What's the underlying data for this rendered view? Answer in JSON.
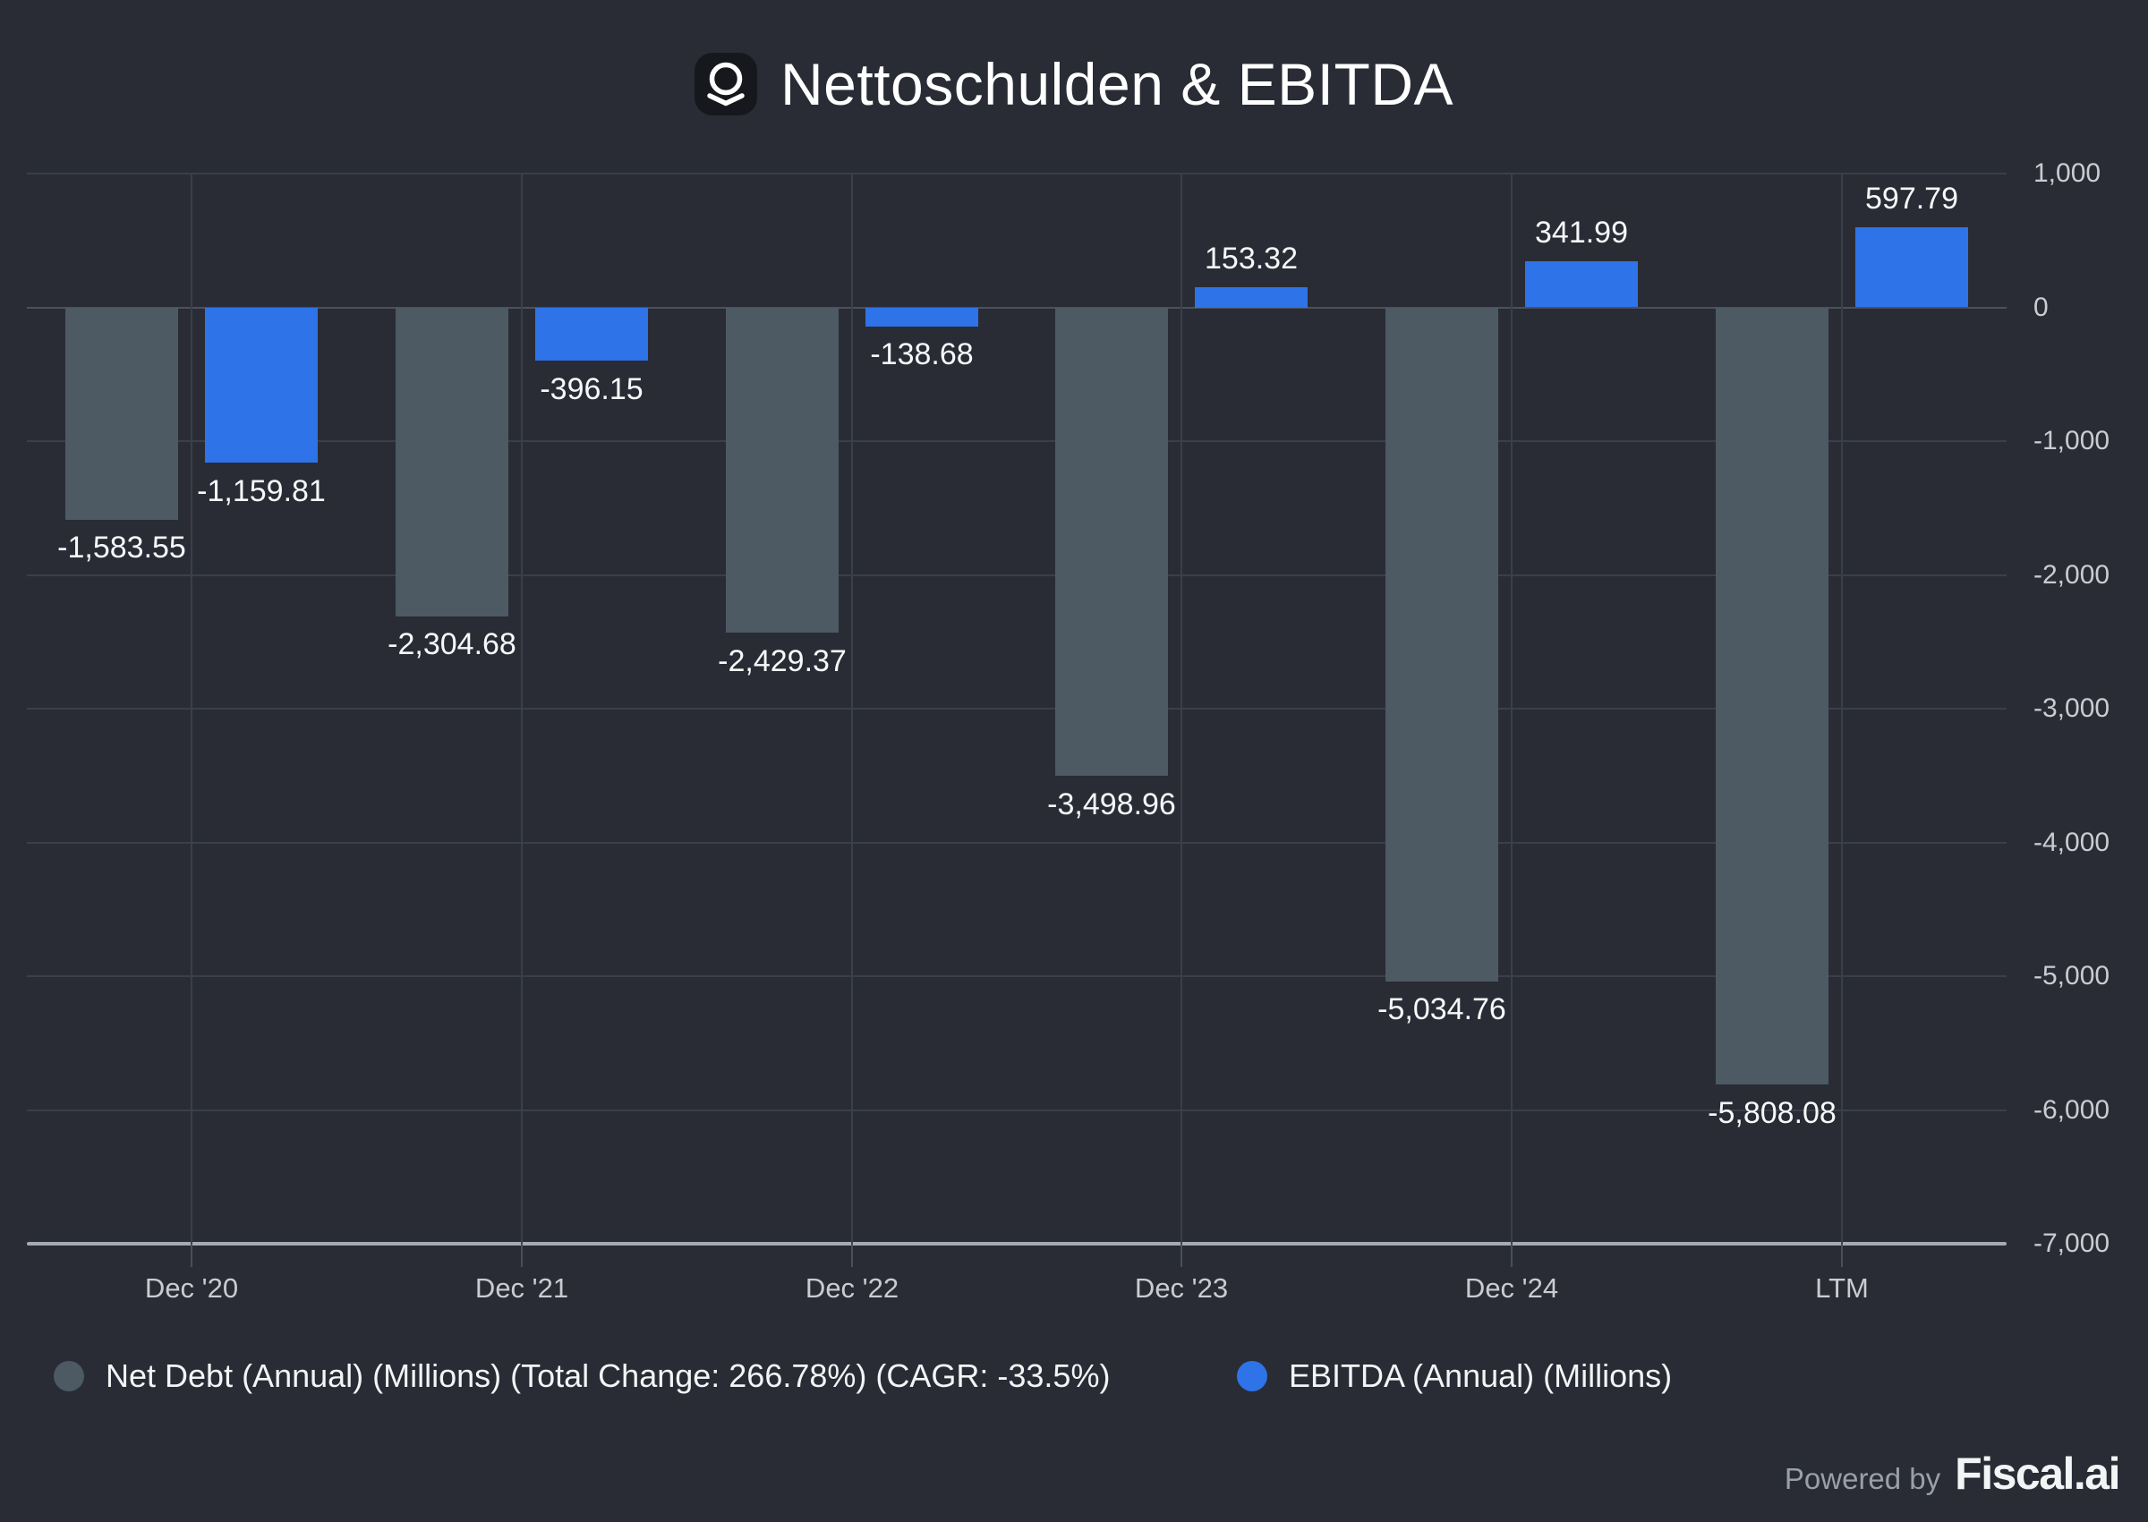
{
  "title": "Nettoschulden & EBITDA",
  "chart_data": {
    "type": "bar",
    "categories": [
      "Dec '20",
      "Dec '21",
      "Dec '22",
      "Dec '23",
      "Dec '24",
      "LTM"
    ],
    "series": [
      {
        "name": "Net Debt (Annual) (Millions) (Total Change: 266.78%) (CAGR: -33.5%)",
        "color": "#4d5963",
        "values": [
          -1583.55,
          -2304.68,
          -2429.37,
          -3498.96,
          -5034.76,
          -5808.08
        ]
      },
      {
        "name": "EBITDA (Annual) (Millions)",
        "color": "#2e73e8",
        "values": [
          -1159.81,
          -396.15,
          -138.68,
          153.32,
          341.99,
          597.79
        ]
      }
    ],
    "title": "Nettoschulden & EBITDA",
    "xlabel": "",
    "ylabel": "",
    "ylim": [
      -7000,
      1000
    ],
    "y_ticks": [
      1000,
      0,
      -1000,
      -2000,
      -3000,
      -4000,
      -5000,
      -6000,
      -7000
    ],
    "y_axis_side": "right",
    "grid": true,
    "legend_position": "bottom",
    "data_labels": true
  },
  "footer": {
    "powered_by": "Powered by",
    "brand": "Fiscal.ai"
  }
}
